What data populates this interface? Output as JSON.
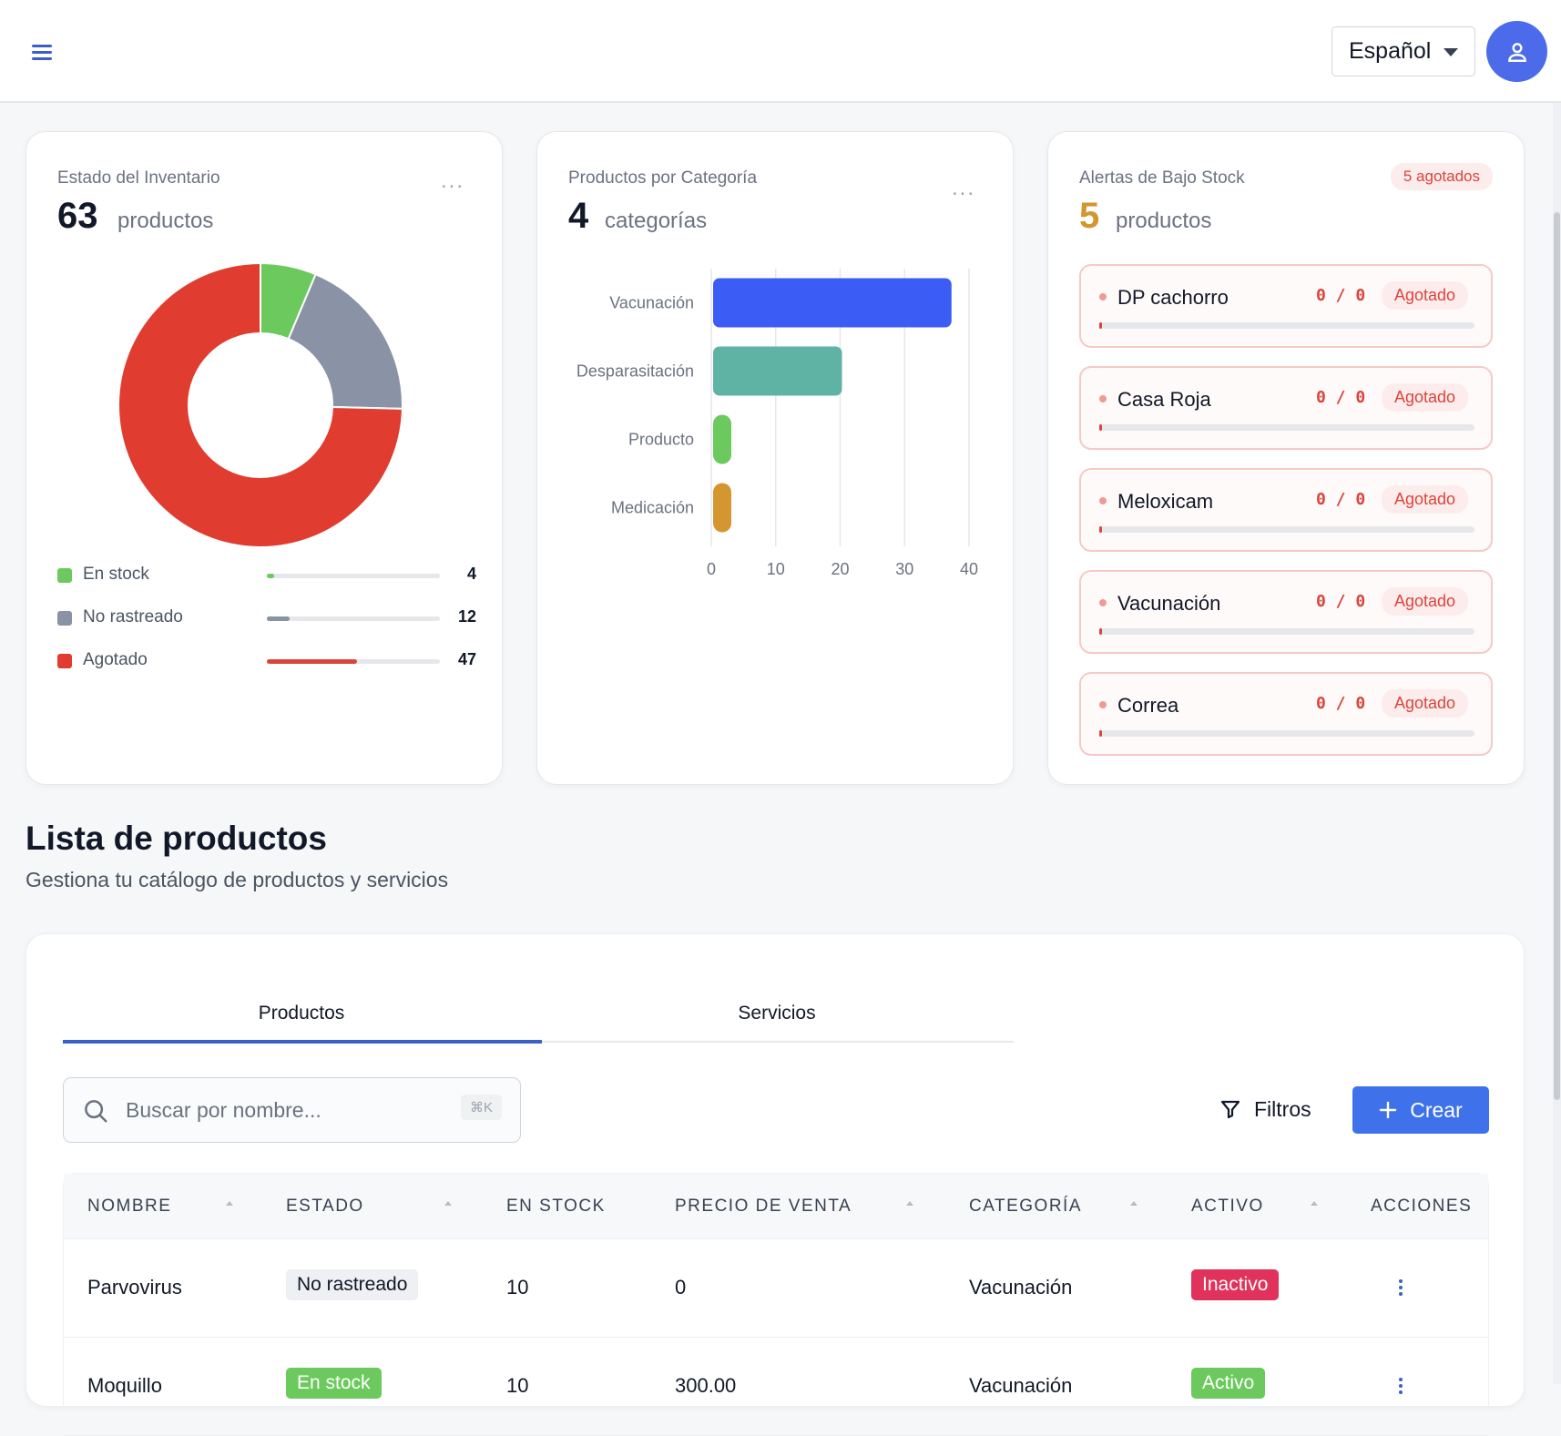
{
  "header": {
    "language": "Español"
  },
  "inventory": {
    "title": "Estado del Inventario",
    "menu": "...",
    "total": "63",
    "unit": "productos",
    "legend": [
      {
        "label": "En stock",
        "value": "4",
        "color": "#6cc95d"
      },
      {
        "label": "No rastreado",
        "value": "12",
        "color": "#8a92a6"
      },
      {
        "label": "Agotado",
        "value": "47",
        "color": "#e03c2f"
      }
    ]
  },
  "categories": {
    "title": "Productos por Categoría",
    "menu": "...",
    "total": "4",
    "unit": "categorías"
  },
  "chart_data": {
    "type": "bar",
    "orientation": "horizontal",
    "categories": [
      "Vacunación",
      "Desparasitación",
      "Producto",
      "Medicación"
    ],
    "values": [
      37,
      20,
      1,
      1
    ],
    "colors": [
      "#3b5cf5",
      "#5fb3a4",
      "#6cc95d",
      "#d4962e"
    ],
    "xlim": [
      0,
      40
    ],
    "xticks": [
      "0",
      "10",
      "20",
      "30",
      "40"
    ],
    "grid": true
  },
  "alerts": {
    "title": "Alertas de Bajo Stock",
    "badge": "5 agotados",
    "total": "5",
    "unit": "productos",
    "items": [
      {
        "name": "DP cachorro",
        "qty": "0 / 0",
        "status": "Agotado"
      },
      {
        "name": "Casa Roja",
        "qty": "0 / 0",
        "status": "Agotado"
      },
      {
        "name": "Meloxicam",
        "qty": "0 / 0",
        "status": "Agotado"
      },
      {
        "name": "Vacunación",
        "qty": "0 / 0",
        "status": "Agotado"
      },
      {
        "name": "Correa",
        "qty": "0 / 0",
        "status": "Agotado"
      }
    ]
  },
  "section": {
    "title": "Lista de productos",
    "subtitle": "Gestiona tu catálogo de productos y servicios"
  },
  "tabs": [
    {
      "label": "Productos",
      "active": true
    },
    {
      "label": "Servicios",
      "active": false
    }
  ],
  "toolbar": {
    "search_placeholder": "Buscar por nombre...",
    "shortcut": "⌘K",
    "filters_label": "Filtros",
    "create_label": "Crear"
  },
  "table": {
    "headers": [
      "NOMBRE",
      "ESTADO",
      "EN STOCK",
      "PRECIO DE VENTA",
      "CATEGORÍA",
      "ACTIVO",
      "ACCIONES"
    ],
    "rows": [
      {
        "name": "Parvovirus",
        "status": "No rastreado",
        "stock": "10",
        "price": "0",
        "category": "Vacunación",
        "active": "Inactivo"
      },
      {
        "name": "Moquillo",
        "status": "En stock",
        "stock": "10",
        "price": "300.00",
        "category": "Vacunación",
        "active": "Activo"
      }
    ]
  }
}
